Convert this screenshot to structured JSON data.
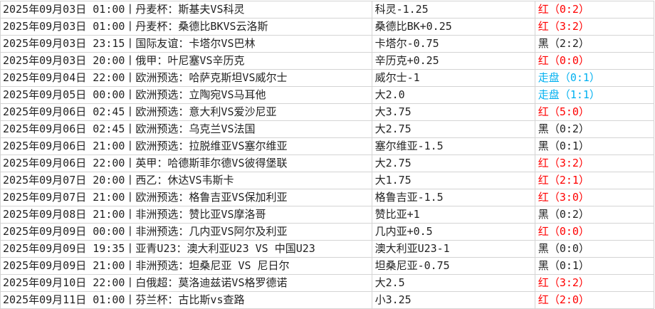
{
  "colors": {
    "red": "#ff0000",
    "black": "#222222",
    "blue": "#00b0f0"
  },
  "rows": [
    {
      "match": "2025年09月03日 01:00丨丹麦杯：斯基夫VS科灵",
      "pick": "科灵-1.25",
      "result": "红",
      "score": "（0:2）",
      "tone": "red"
    },
    {
      "match": "2025年09月03日 01:00丨丹麦杯：桑德比BKVS云洛斯",
      "pick": "桑德比BK+0.25",
      "result": "红",
      "score": "（3:2）",
      "tone": "red"
    },
    {
      "match": "2025年09月03日 23:15丨国际友谊：卡塔尔VS巴林",
      "pick": "卡塔尔-0.75",
      "result": "黑",
      "score": "（2:2）",
      "tone": "black"
    },
    {
      "match": "2025年09月03日 20:00丨俄甲：叶尼塞VS辛历克",
      "pick": "辛历克+0.25",
      "result": "红",
      "score": "（0:0）",
      "tone": "red"
    },
    {
      "match": "2025年09月04日 22:00丨欧洲预选：哈萨克斯坦VS威尔士",
      "pick": "威尔士-1",
      "result": "走盘",
      "score": "（0:1）",
      "tone": "blue"
    },
    {
      "match": "2025年09月05日 00:00丨欧洲预选：立陶宛VS马耳他",
      "pick": "大2.0",
      "result": "走盘",
      "score": "（1:1）",
      "tone": "blue"
    },
    {
      "match": "2025年09月06日 02:45丨欧洲预选：意大利VS爱沙尼亚",
      "pick": "大3.75",
      "result": "红",
      "score": "（5:0）",
      "tone": "red"
    },
    {
      "match": "2025年09月06日 02:45丨欧洲预选：乌克兰VS法国",
      "pick": "大2.75",
      "result": "黑",
      "score": "（0:2）",
      "tone": "black"
    },
    {
      "match": "2025年09月06日 21:00丨欧洲预选：拉脱维亚VS塞尔维亚",
      "pick": "塞尔维亚-1.5",
      "result": "黑",
      "score": "（0:1）",
      "tone": "black"
    },
    {
      "match": "2025年09月06日 22:00丨英甲：哈德斯菲尔德VS彼得堡联",
      "pick": "大2.75",
      "result": "红",
      "score": "（3:2）",
      "tone": "red"
    },
    {
      "match": "2025年09月07日 20:00丨西乙：休达VS韦斯卡",
      "pick": "大1.75",
      "result": "红",
      "score": "（2:1）",
      "tone": "red"
    },
    {
      "match": "2025年09月07日 21:00丨欧洲预选：格鲁吉亚VS保加利亚",
      "pick": "格鲁吉亚-1.5",
      "result": "红",
      "score": "（3:0）",
      "tone": "red"
    },
    {
      "match": "2025年09月08日 21:00丨非洲预选：赞比亚VS摩洛哥",
      "pick": "赞比亚+1",
      "result": "黑",
      "score": "（0:2）",
      "tone": "black"
    },
    {
      "match": "2025年09月09日 00:00丨非洲预选：几内亚VS阿尔及利亚",
      "pick": "几内亚+0.5",
      "result": "红",
      "score": "（0:0）",
      "tone": "red"
    },
    {
      "match": "2025年09月09日 19:35丨亚青U23：澳大利亚U23 VS 中国U23",
      "pick": "澳大利亚U23-1",
      "result": "黑",
      "score": "（0:0）",
      "tone": "black"
    },
    {
      "match": "2025年09月09日 21:00丨非洲预选：坦桑尼亚 VS 尼日尔",
      "pick": "坦桑尼亚-0.75",
      "result": "黑",
      "score": "（0:1）",
      "tone": "black"
    },
    {
      "match": "2025年09月10日 22:00丨白俄超：莫洛迪兹诺VS格罗德诺",
      "pick": "大2.5",
      "result": "红",
      "score": "（3:2）",
      "tone": "red"
    },
    {
      "match": "2025年09月11日 01:00丨芬兰杯：古比斯vs查路",
      "pick": "小3.25",
      "result": "红",
      "score": "（2:0）",
      "tone": "red"
    }
  ]
}
